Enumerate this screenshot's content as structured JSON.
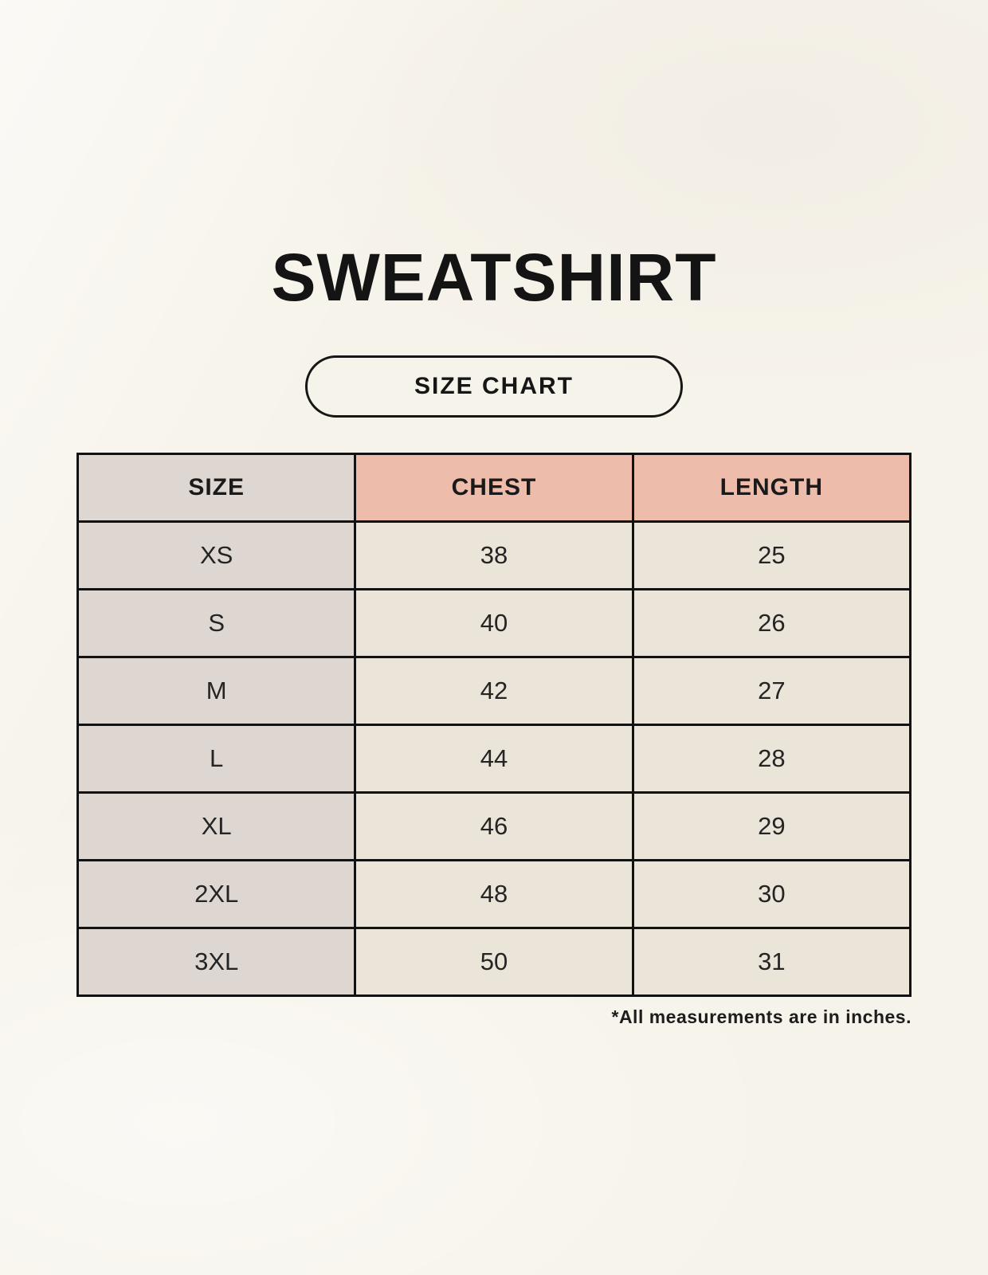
{
  "page": {
    "title": "SWEATSHIRT",
    "badge_label": "SIZE CHART",
    "footnote": "*All measurements are in inches."
  },
  "table": {
    "columns": [
      "SIZE",
      "CHEST",
      "LENGTH"
    ],
    "rows": [
      {
        "size": "XS",
        "chest": "38",
        "length": "25"
      },
      {
        "size": "S",
        "chest": "40",
        "length": "26"
      },
      {
        "size": "M",
        "chest": "42",
        "length": "27"
      },
      {
        "size": "L",
        "chest": "44",
        "length": "28"
      },
      {
        "size": "XL",
        "chest": "46",
        "length": "29"
      },
      {
        "size": "2XL",
        "chest": "48",
        "length": "30"
      },
      {
        "size": "3XL",
        "chest": "50",
        "length": "31"
      }
    ]
  },
  "colors": {
    "background_cream": "#f6f3ea",
    "header_pink": "#eebcaa",
    "size_column_taupe": "#ded7d1",
    "data_cell_beige": "#ebe4d8",
    "border_black": "#121212",
    "text_black": "#1a1a1a"
  },
  "chart_data": {
    "type": "table",
    "title": "SWEATSHIRT",
    "subtitle": "SIZE CHART",
    "columns": [
      "SIZE",
      "CHEST",
      "LENGTH"
    ],
    "rows": [
      [
        "XS",
        38,
        25
      ],
      [
        "S",
        40,
        26
      ],
      [
        "M",
        42,
        27
      ],
      [
        "L",
        44,
        28
      ],
      [
        "XL",
        46,
        29
      ],
      [
        "2XL",
        48,
        30
      ],
      [
        "3XL",
        50,
        31
      ]
    ],
    "units": "inches",
    "note": "*All measurements are in inches."
  }
}
